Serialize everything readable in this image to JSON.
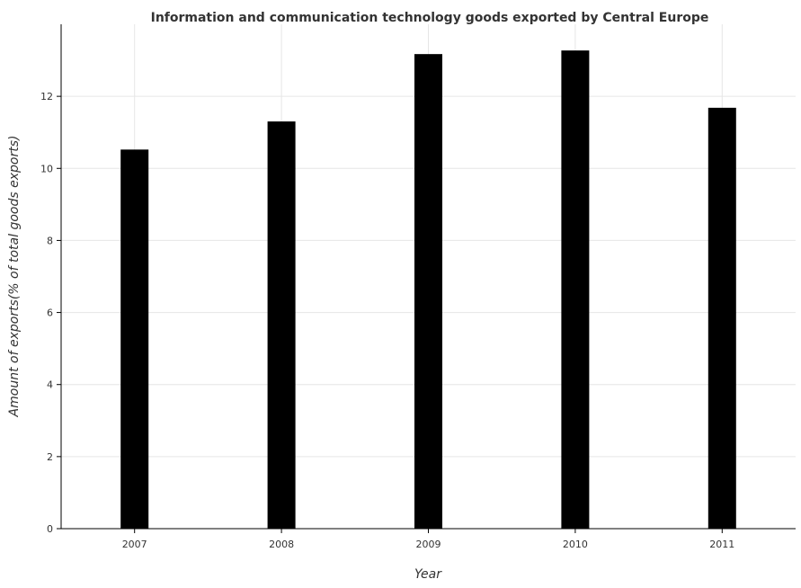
{
  "chart_data": {
    "type": "bar",
    "title": "Information and communication technology goods exported by Central Europe",
    "xlabel": "Year",
    "ylabel": "Amount of exports(% of total goods exports)",
    "categories": [
      "2007",
      "2008",
      "2009",
      "2010",
      "2011"
    ],
    "values": [
      10.51,
      11.29,
      13.16,
      13.26,
      11.67
    ],
    "ylim": [
      0,
      14
    ],
    "yticks": [
      0,
      2,
      4,
      6,
      8,
      10,
      12
    ],
    "ytick_labels": [
      "0",
      "2",
      "4",
      "6",
      "8",
      "10",
      "12"
    ],
    "grid": true,
    "legend": "none",
    "colors": {
      "bar_fill": "#000000",
      "bar_stroke": "#000000",
      "grid": "#e6e6e6",
      "axis": "#000000",
      "text": "#333333"
    }
  }
}
